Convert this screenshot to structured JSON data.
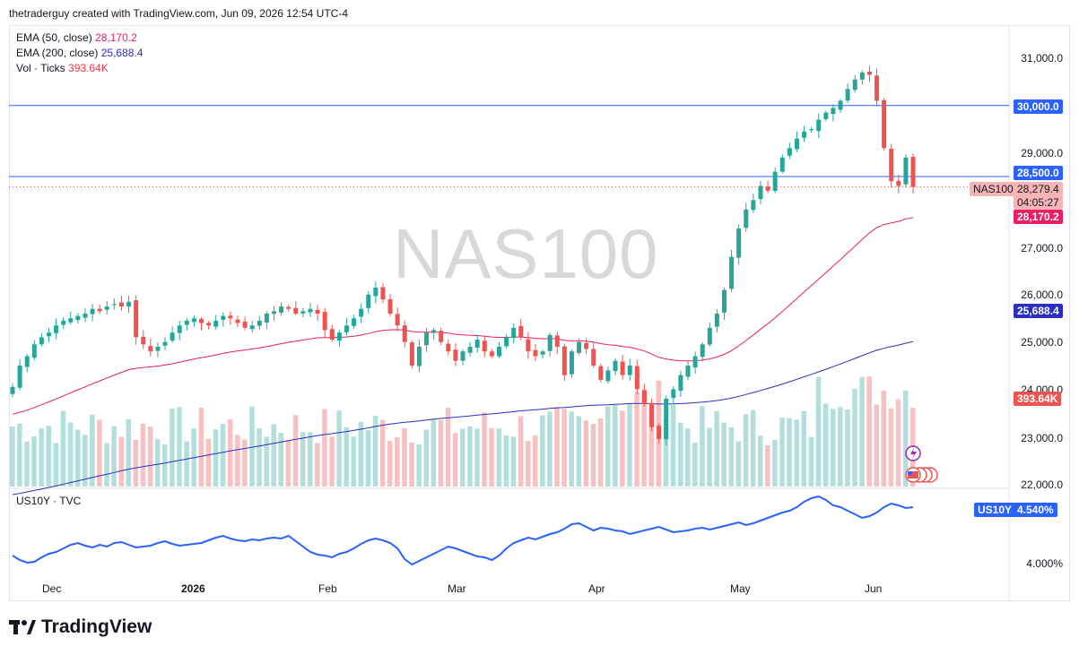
{
  "header": {
    "text": "thetraderguy created with TradingView.com, Jun 09, 2026 12:54 UTC-4"
  },
  "watermark": "NAS100",
  "legend": {
    "ema50": {
      "label": "EMA (50, close)",
      "value": "28,170.2",
      "color": "#e91e63"
    },
    "ema200": {
      "label": "EMA (200, close)",
      "value": "25,688.4",
      "color": "#2a2ec4"
    },
    "vol": {
      "label": "Vol · Ticks",
      "value": "393.64K",
      "color": "#f23645"
    }
  },
  "sub_pane": {
    "label": "US10Y · TVC",
    "tag_symbol": "US10Y",
    "tag_value": "4.540%",
    "color": "#2962ff",
    "tick": "4.000%"
  },
  "tags": {
    "level_30000": "30,000.0",
    "level_28500": "28,500.0",
    "symbol": "NAS100",
    "price": "28,279.4",
    "countdown": "04:05:27",
    "ema50": "28,170.2",
    "ema200": "25,688.4",
    "volume": "393.64K"
  },
  "brand": {
    "name": "TradingView"
  },
  "colors": {
    "up": "#26a69a",
    "down": "#ef5350",
    "level_line": "#2962ff",
    "vol_up": "#b2dfdb",
    "vol_down": "#f7c1c1"
  },
  "chart_data": [
    {
      "type": "candlestick",
      "title": "NAS100",
      "y_ticks": [
        "31,000.0",
        "30,000.0",
        "29,000.0",
        "27,000.0",
        "26,000.0",
        "25,000.0",
        "24,000.0",
        "23,000.0",
        "22,000.0"
      ],
      "x_ticks": [
        "Dec",
        "2026",
        "Feb",
        "Mar",
        "Apr",
        "May",
        "Jun"
      ],
      "ylim": [
        21950,
        31450
      ],
      "horizontal_levels": [
        30000,
        28500
      ],
      "last_price": 28279.4,
      "close_series": [
        24050,
        24500,
        24700,
        24950,
        25100,
        25200,
        25350,
        25450,
        25500,
        25550,
        25600,
        25700,
        25650,
        25750,
        25800,
        25750,
        25850,
        25100,
        24950,
        24800,
        24900,
        25000,
        25200,
        25350,
        25450,
        25500,
        25400,
        25350,
        25450,
        25550,
        25500,
        25400,
        25300,
        25350,
        25450,
        25600,
        25650,
        25750,
        25700,
        25600,
        25650,
        25700,
        25600,
        25250,
        25050,
        25200,
        25350,
        25500,
        25700,
        26000,
        26150,
        25900,
        25600,
        25350,
        25000,
        24500,
        24900,
        25200,
        25250,
        25000,
        24800,
        24600,
        24800,
        24900,
        25050,
        24800,
        24700,
        24900,
        25100,
        25300,
        25100,
        24800,
        24700,
        24800,
        25150,
        24900,
        24300,
        24800,
        25000,
        24850,
        24500,
        24200,
        24400,
        24600,
        24300,
        24500,
        24000,
        23700,
        23200,
        22950,
        23800,
        24000,
        24300,
        24500,
        24700,
        24950,
        25300,
        25600,
        26100,
        26800,
        27400,
        27800,
        28000,
        28300,
        28200,
        28600,
        28900,
        29100,
        29300,
        29450,
        29500,
        29700,
        29850,
        29950,
        30100,
        30350,
        30550,
        30700,
        30650,
        30100,
        29100,
        28400,
        28300,
        28900,
        28279
      ],
      "volume": "393.64K"
    },
    {
      "type": "line",
      "title": "US10Y · TVC",
      "y_ticks": [
        "4.000%"
      ],
      "last_value": "4.540%"
    }
  ]
}
